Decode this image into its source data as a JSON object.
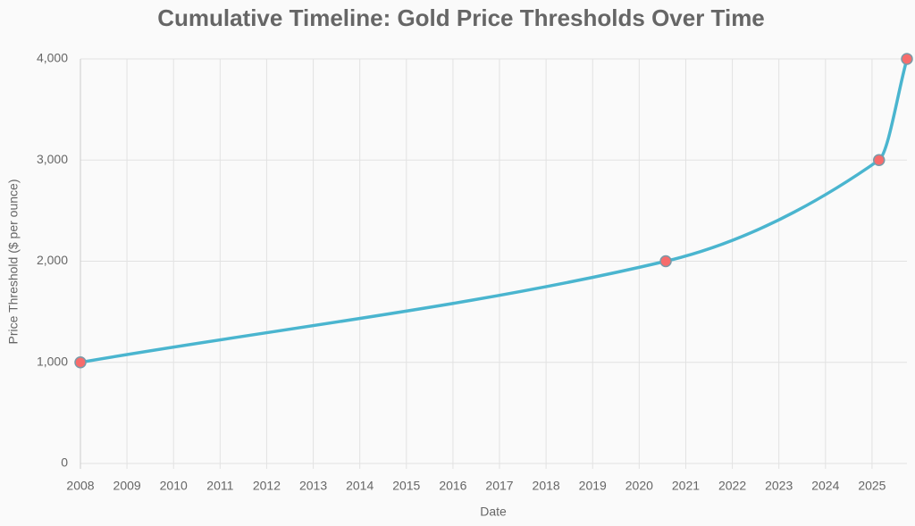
{
  "chart_data": {
    "type": "line",
    "title": "Cumulative Timeline: Gold Price Thresholds Over Time",
    "x_label": "Date",
    "y_label": "Price Threshold ($ per ounce)",
    "x": [
      2008,
      2020.57,
      2025.15,
      2025.75
    ],
    "series": [
      {
        "color": "#4ab5cf",
        "point_color": "#f76c6c",
        "values": [
          1000,
          2000,
          3000,
          4000
        ]
      }
    ],
    "xlim": [
      2008,
      2025.75
    ],
    "xticks": [
      2008,
      2009,
      2010,
      2011,
      2012,
      2013,
      2014,
      2015,
      2016,
      2017,
      2018,
      2019,
      2020,
      2021,
      2022,
      2023,
      2024,
      2025
    ],
    "ylim": [
      0,
      4000
    ],
    "yticks": [
      0,
      {
        "value": 1000,
        "label": "1,000"
      },
      {
        "value": 2000,
        "label": "2,000"
      },
      {
        "value": 3000,
        "label": "3,000"
      },
      {
        "value": 4000,
        "label": "4,000"
      }
    ],
    "grid": true
  }
}
